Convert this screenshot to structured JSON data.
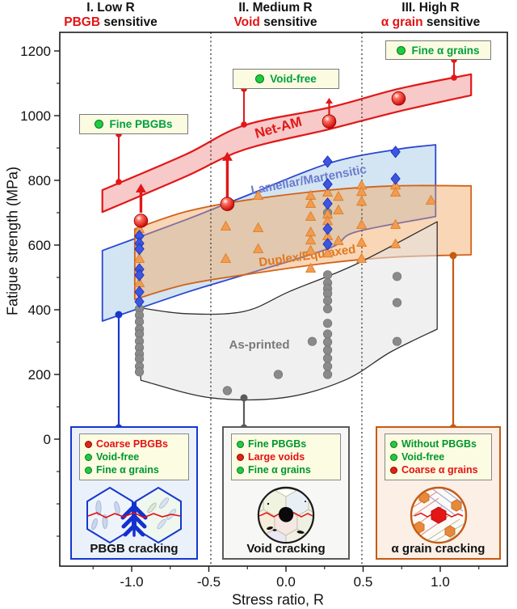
{
  "headers": [
    {
      "line1": "I. Low R",
      "accent": "PBGB",
      "rest": " sensitive"
    },
    {
      "line1": "II. Medium R",
      "accent": "Void",
      "rest": " sensitive"
    },
    {
      "line1": "III. High R",
      "accent": "α grain",
      "rest": " sensitive"
    }
  ],
  "chips": [
    {
      "label": "Fine PBGBs",
      "dot": "#1FCC3F"
    },
    {
      "label": "Void-free",
      "dot": "#1FCC3F"
    },
    {
      "label": "Fine α grains",
      "dot": "#1FCC3F"
    }
  ],
  "boxes": [
    {
      "caption": "PBGB cracking",
      "border": "#1637CE",
      "items": [
        {
          "label": "Coarse PBGBs",
          "dot": "#E82010",
          "color": "#E31212"
        },
        {
          "label": "Void-free",
          "dot": "#1FCC3F",
          "color": "#00962E"
        },
        {
          "label": "Fine α grains",
          "dot": "#1FCC3F",
          "color": "#00962E"
        }
      ]
    },
    {
      "caption": "Void cracking",
      "border": "#5A5A5A",
      "items": [
        {
          "label": "Fine PBGBs",
          "dot": "#1FCC3F",
          "color": "#00962E"
        },
        {
          "label": "Large voids",
          "dot": "#E82010",
          "color": "#E31212"
        },
        {
          "label": "Fine α grains",
          "dot": "#1FCC3F",
          "color": "#00962E"
        }
      ]
    },
    {
      "caption": "α grain cracking",
      "border": "#C55A11",
      "items": [
        {
          "label": "Without PBGBs",
          "dot": "#1FCC3F",
          "color": "#00962E"
        },
        {
          "label": "Void-free",
          "dot": "#1FCC3F",
          "color": "#00962E"
        },
        {
          "label": "Coarse α grains",
          "dot": "#E82010",
          "color": "#E31212"
        }
      ]
    }
  ],
  "chart_data": {
    "type": "scatter",
    "title": "",
    "xlabel": "Stress ratio, R",
    "ylabel": "Fatigue strength (MPa)",
    "xlim": [
      -1.466,
      1.435
    ],
    "ylim": [
      -392.5,
      1257.5
    ],
    "grid": false,
    "x_ticks": [
      {
        "v": -1,
        "label": "-1.0"
      },
      {
        "v": -0.5,
        "label": "-0.5"
      },
      {
        "v": 0,
        "label": "0.0"
      },
      {
        "v": 0.5,
        "label": "0.5"
      },
      {
        "v": 1,
        "label": "1.0"
      }
    ],
    "x_minor": [
      -1.25,
      -0.75,
      -0.25,
      0.25,
      0.75,
      1.25
    ],
    "y_ticks": [
      {
        "v": 0,
        "label": "0"
      },
      {
        "v": 200,
        "label": "200"
      },
      {
        "v": 400,
        "label": "400"
      },
      {
        "v": 600,
        "label": "600"
      },
      {
        "v": 800,
        "label": "800"
      },
      {
        "v": 1000,
        "label": "1000"
      },
      {
        "v": 1200,
        "label": "1200"
      }
    ],
    "y_minor": [
      -300,
      -200,
      -100,
      100,
      300,
      500,
      700,
      900,
      1100
    ],
    "region_boundaries": [
      -0.487,
      0.492
    ],
    "bands": [
      {
        "name": "Net-AM",
        "label": "Net-AM",
        "label_color": "#E21717",
        "fill": "#F6BFBF",
        "fill_opacity": 0.85,
        "stroke": "#E21717",
        "stroke_width": 2.2,
        "top": [
          [
            -1.19,
            770
          ],
          [
            -0.65,
            880
          ],
          [
            -0.27,
            970
          ],
          [
            0.28,
            1025
          ],
          [
            0.73,
            1083
          ],
          [
            1.2,
            1128
          ]
        ],
        "bottom": [
          [
            -1.19,
            702
          ],
          [
            -0.65,
            812
          ],
          [
            -0.27,
            895
          ],
          [
            0.28,
            958
          ],
          [
            0.73,
            1013
          ],
          [
            1.2,
            1063
          ]
        ]
      },
      {
        "name": "Lamellar/Martensitic",
        "label": "Lamellar/Martensitic",
        "label_color": "#6C7BD0",
        "fill": "#A8CBE8",
        "fill_opacity": 0.5,
        "stroke": "#2B46D4",
        "stroke_width": 1.8,
        "top": [
          [
            -1.19,
            583
          ],
          [
            -0.65,
            678
          ],
          [
            -0.27,
            750
          ],
          [
            0.28,
            853
          ],
          [
            0.71,
            895
          ],
          [
            0.97,
            910
          ]
        ],
        "bottom": [
          [
            -1.19,
            365
          ],
          [
            -0.65,
            453
          ],
          [
            -0.27,
            508
          ],
          [
            0.28,
            590
          ],
          [
            0.45,
            640
          ],
          [
            0.97,
            688
          ]
        ]
      },
      {
        "name": "Duplex/Equiaxed",
        "label": "Duplex/Equiaxed",
        "label_color": "#E0781E",
        "fill": "#F2A35C",
        "fill_opacity": 0.45,
        "stroke": "#D2621A",
        "stroke_width": 1.8,
        "top": [
          [
            -0.98,
            650
          ],
          [
            -0.65,
            703
          ],
          [
            -0.27,
            738
          ],
          [
            0.28,
            770
          ],
          [
            0.71,
            783
          ],
          [
            1.2,
            783
          ]
        ],
        "bottom": [
          [
            -0.98,
            432
          ],
          [
            -0.65,
            478
          ],
          [
            -0.27,
            508
          ],
          [
            0.28,
            545
          ],
          [
            0.71,
            563
          ],
          [
            1.2,
            570
          ]
        ]
      },
      {
        "name": "As-printed",
        "label": "As-printed",
        "label_color": "#7A7A7A",
        "fill": "#E3E3E3",
        "fill_opacity": 0.55,
        "stroke": "#2F2F2F",
        "stroke_width": 1.3,
        "top": [
          [
            -0.97,
            408
          ],
          [
            -0.65,
            388
          ],
          [
            -0.27,
            395
          ],
          [
            0.03,
            458
          ],
          [
            0.45,
            540
          ],
          [
            0.98,
            672
          ]
        ],
        "bottom": [
          [
            -0.94,
            182
          ],
          [
            -0.49,
            128
          ],
          [
            -0.02,
            128
          ],
          [
            0.38,
            182
          ],
          [
            0.68,
            270
          ],
          [
            0.98,
            340
          ]
        ]
      }
    ],
    "series": [
      {
        "name": "Net-AM",
        "marker": "sphere",
        "color": "#E02020",
        "points": [
          [
            -0.94,
            675
          ],
          [
            -0.38,
            727
          ],
          [
            0.28,
            982
          ],
          [
            0.73,
            1053
          ]
        ]
      },
      {
        "name": "Lamellar/Martensitic",
        "marker": "diamond",
        "color": "#3D55E0",
        "points": [
          [
            -0.95,
            628
          ],
          [
            -0.95,
            605
          ],
          [
            -0.95,
            588
          ],
          [
            -0.95,
            525
          ],
          [
            -0.95,
            507
          ],
          [
            -0.95,
            455
          ],
          [
            -0.95,
            425
          ],
          [
            0.27,
            858
          ],
          [
            0.27,
            788
          ],
          [
            0.27,
            728
          ],
          [
            0.27,
            650
          ],
          [
            0.27,
            603
          ],
          [
            0.71,
            888
          ],
          [
            0.71,
            805
          ]
        ]
      },
      {
        "name": "Duplex/Equiaxed",
        "marker": "triangle",
        "color": "#F29B53",
        "points": [
          [
            -0.95,
            650
          ],
          [
            -0.95,
            558
          ],
          [
            -0.95,
            483
          ],
          [
            -0.39,
            658
          ],
          [
            -0.39,
            558
          ],
          [
            -0.18,
            753
          ],
          [
            -0.18,
            653
          ],
          [
            -0.18,
            588
          ],
          [
            0.16,
            753
          ],
          [
            0.16,
            728
          ],
          [
            0.16,
            688
          ],
          [
            0.16,
            640
          ],
          [
            0.16,
            615
          ],
          [
            0.16,
            583
          ],
          [
            0.16,
            528
          ],
          [
            0.27,
            763
          ],
          [
            0.27,
            695
          ],
          [
            0.27,
            675
          ],
          [
            0.27,
            628
          ],
          [
            0.27,
            575
          ],
          [
            0.34,
            750
          ],
          [
            0.34,
            708
          ],
          [
            0.34,
            613
          ],
          [
            0.49,
            785
          ],
          [
            0.49,
            765
          ],
          [
            0.49,
            735
          ],
          [
            0.49,
            663
          ],
          [
            0.49,
            608
          ],
          [
            0.49,
            558
          ],
          [
            0.71,
            785
          ],
          [
            0.71,
            763
          ],
          [
            0.71,
            663
          ],
          [
            0.71,
            603
          ],
          [
            0.94,
            738
          ]
        ]
      },
      {
        "name": "As-printed",
        "marker": "circle",
        "color": "#8A8A8A",
        "points": [
          [
            -0.95,
            403
          ],
          [
            -0.95,
            383
          ],
          [
            -0.95,
            363
          ],
          [
            -0.95,
            340
          ],
          [
            -0.95,
            325
          ],
          [
            -0.95,
            303
          ],
          [
            -0.95,
            283
          ],
          [
            -0.95,
            263
          ],
          [
            -0.95,
            248
          ],
          [
            -0.95,
            225
          ],
          [
            -0.95,
            208
          ],
          [
            -0.38,
            150
          ],
          [
            -0.05,
            200
          ],
          [
            0.17,
            302
          ],
          [
            0.27,
            700
          ],
          [
            0.27,
            508
          ],
          [
            0.27,
            483
          ],
          [
            0.27,
            465
          ],
          [
            0.27,
            450
          ],
          [
            0.27,
            428
          ],
          [
            0.27,
            403
          ],
          [
            0.27,
            358
          ],
          [
            0.27,
            325
          ],
          [
            0.27,
            300
          ],
          [
            0.27,
            275
          ],
          [
            0.27,
            250
          ],
          [
            0.27,
            225
          ],
          [
            0.27,
            200
          ],
          [
            0.72,
            503
          ],
          [
            0.72,
            422
          ],
          [
            0.72,
            302
          ]
        ]
      }
    ],
    "arrows": [
      {
        "r": -0.94,
        "from": 700,
        "to": 790
      },
      {
        "r": -0.38,
        "from": 742,
        "to": 888
      },
      {
        "r": 0.28,
        "from": 1000,
        "to": 1055,
        "small": true
      }
    ],
    "legend_position": "none"
  }
}
